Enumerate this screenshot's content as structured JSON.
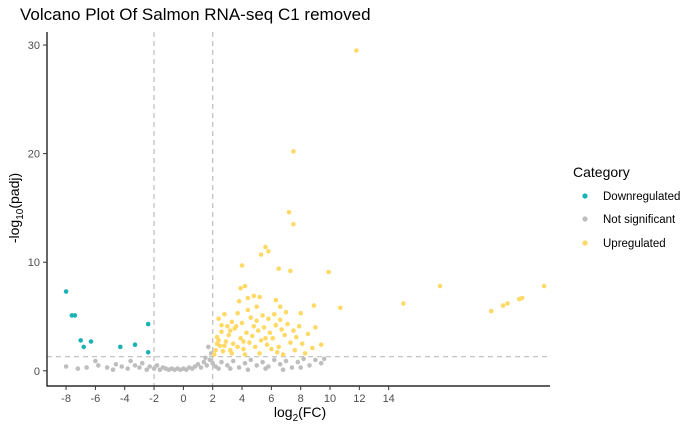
{
  "chart_data": {
    "type": "scatter",
    "title": "Volcano Plot Of Salmon RNA-seq C1 removed",
    "xlabel": {
      "main": "log",
      "sub": "2",
      "tail": "(FC)"
    },
    "ylabel": {
      "main": "-log",
      "sub": "10",
      "tail": "(padj)"
    },
    "xlim": [
      -9.3,
      25
    ],
    "ylim": [
      -1.4,
      31.2
    ],
    "xticks": [
      -8,
      -6,
      -4,
      -2,
      0,
      2,
      4,
      6,
      8,
      10,
      12,
      14
    ],
    "yticks": [
      0,
      10,
      20,
      30
    ],
    "thresholds": {
      "x": [
        -2,
        2
      ],
      "y": 1.3
    },
    "grid": false,
    "legend": {
      "title": "Category",
      "position": "right",
      "entries": [
        {
          "label": "Downregulated",
          "color": "#1AB2B2"
        },
        {
          "label": "Not significant",
          "color": "#BEBEBE"
        },
        {
          "label": "Upregulated",
          "color": "#FFD966"
        }
      ]
    },
    "series": [
      {
        "name": "Downregulated",
        "color": "#1AB2B2",
        "points": [
          [
            -8.0,
            7.3
          ],
          [
            -7.6,
            5.1
          ],
          [
            -7.4,
            5.1
          ],
          [
            -7.0,
            2.8
          ],
          [
            -6.8,
            2.2
          ],
          [
            -6.3,
            2.7
          ],
          [
            -4.3,
            2.2
          ],
          [
            -3.3,
            2.4
          ],
          [
            -2.4,
            4.3
          ],
          [
            -2.4,
            1.7
          ]
        ]
      },
      {
        "name": "Not significant",
        "color": "#BEBEBE",
        "points": [
          [
            -8.0,
            0.4
          ],
          [
            -7.2,
            0.2
          ],
          [
            -6.6,
            0.3
          ],
          [
            -6.0,
            0.9
          ],
          [
            -5.8,
            0.5
          ],
          [
            -5.2,
            0.3
          ],
          [
            -4.8,
            0.1
          ],
          [
            -4.6,
            0.6
          ],
          [
            -4.2,
            0.4
          ],
          [
            -3.8,
            0.2
          ],
          [
            -3.6,
            0.9
          ],
          [
            -3.3,
            0.5
          ],
          [
            -3.0,
            0.3
          ],
          [
            -2.8,
            0.7
          ],
          [
            -2.5,
            0.1
          ],
          [
            -2.3,
            0.4
          ],
          [
            -2.0,
            0.2
          ],
          [
            -1.8,
            0.5
          ],
          [
            -1.6,
            0.1
          ],
          [
            -1.4,
            0.3
          ],
          [
            -1.2,
            0.2
          ],
          [
            -1.0,
            0.1
          ],
          [
            -0.8,
            0.2
          ],
          [
            -0.6,
            0.1
          ],
          [
            -0.4,
            0.2
          ],
          [
            -0.2,
            0.1
          ],
          [
            0.0,
            0.2
          ],
          [
            0.2,
            0.1
          ],
          [
            0.4,
            0.3
          ],
          [
            0.6,
            0.2
          ],
          [
            0.8,
            0.4
          ],
          [
            1.0,
            0.6
          ],
          [
            1.2,
            0.3
          ],
          [
            1.4,
            0.8
          ],
          [
            1.6,
            0.5
          ],
          [
            1.8,
            1.0
          ],
          [
            1.9,
            1.6
          ],
          [
            1.7,
            2.2
          ],
          [
            2.0,
            0.7
          ],
          [
            1.5,
            1.2
          ],
          [
            2.2,
            0.4
          ],
          [
            2.6,
            0.8
          ],
          [
            3.0,
            0.5
          ],
          [
            3.4,
            0.9
          ],
          [
            3.8,
            0.3
          ],
          [
            4.2,
            0.7
          ],
          [
            4.6,
            1.0
          ],
          [
            5.0,
            0.5
          ],
          [
            5.4,
            0.8
          ],
          [
            5.8,
            0.4
          ],
          [
            6.2,
            1.0
          ],
          [
            6.6,
            0.6
          ],
          [
            7.0,
            0.9
          ],
          [
            7.4,
            0.3
          ],
          [
            7.8,
            0.8
          ],
          [
            8.2,
            1.1
          ],
          [
            8.6,
            0.5
          ],
          [
            9.0,
            1.0
          ],
          [
            9.4,
            0.7
          ],
          [
            9.6,
            1.1
          ],
          [
            2.4,
            0.2
          ],
          [
            3.2,
            0.2
          ],
          [
            4.4,
            0.1
          ],
          [
            5.6,
            0.2
          ],
          [
            6.8,
            0.1
          ],
          [
            8.0,
            0.3
          ]
        ]
      },
      {
        "name": "Upregulated",
        "color": "#FFD966",
        "points": [
          [
            11.8,
            29.5
          ],
          [
            7.5,
            20.2
          ],
          [
            7.2,
            14.6
          ],
          [
            7.5,
            13.5
          ],
          [
            5.6,
            11.4
          ],
          [
            5.3,
            10.7
          ],
          [
            5.8,
            11.0
          ],
          [
            4.0,
            9.7
          ],
          [
            6.5,
            9.4
          ],
          [
            7.3,
            9.2
          ],
          [
            9.9,
            9.1
          ],
          [
            4.2,
            7.8
          ],
          [
            3.9,
            7.6
          ],
          [
            4.4,
            6.7
          ],
          [
            3.8,
            6.4
          ],
          [
            4.8,
            6.9
          ],
          [
            5.2,
            6.8
          ],
          [
            6.3,
            6.5
          ],
          [
            8.9,
            6.0
          ],
          [
            10.7,
            5.8
          ],
          [
            6.6,
            5.9
          ],
          [
            7.0,
            5.4
          ],
          [
            15.0,
            6.2
          ],
          [
            17.5,
            7.8
          ],
          [
            21.0,
            5.5
          ],
          [
            21.8,
            6.0
          ],
          [
            22.1,
            6.2
          ],
          [
            22.9,
            6.6
          ],
          [
            23.1,
            6.7
          ],
          [
            24.6,
            7.8
          ],
          [
            2.4,
            4.8
          ],
          [
            2.8,
            5.2
          ],
          [
            3.3,
            4.5
          ],
          [
            3.6,
            4.1
          ],
          [
            2.6,
            3.6
          ],
          [
            3.1,
            3.3
          ],
          [
            2.3,
            3.1
          ],
          [
            2.9,
            2.7
          ],
          [
            3.4,
            2.5
          ],
          [
            2.5,
            2.3
          ],
          [
            2.2,
            1.9
          ],
          [
            2.7,
            1.8
          ],
          [
            3.2,
            1.9
          ],
          [
            3.7,
            2.2
          ],
          [
            4.1,
            2.0
          ],
          [
            4.5,
            2.6
          ],
          [
            4.9,
            2.2
          ],
          [
            5.3,
            2.8
          ],
          [
            5.7,
            2.4
          ],
          [
            6.1,
            3.0
          ],
          [
            6.5,
            2.2
          ],
          [
            6.9,
            3.3
          ],
          [
            7.3,
            2.6
          ],
          [
            7.7,
            3.1
          ],
          [
            8.1,
            2.5
          ],
          [
            8.5,
            3.4
          ],
          [
            4.3,
            3.5
          ],
          [
            4.7,
            3.2
          ],
          [
            5.1,
            3.7
          ],
          [
            5.5,
            4.0
          ],
          [
            5.9,
            3.5
          ],
          [
            6.3,
            4.2
          ],
          [
            6.7,
            3.8
          ],
          [
            7.1,
            4.3
          ],
          [
            7.5,
            3.7
          ],
          [
            7.9,
            4.1
          ],
          [
            3.5,
            3.9
          ],
          [
            4.0,
            4.4
          ],
          [
            4.6,
            4.9
          ],
          [
            5.0,
            4.6
          ],
          [
            5.4,
            5.1
          ],
          [
            5.8,
            4.8
          ],
          [
            6.2,
            5.2
          ],
          [
            3.0,
            4.1
          ],
          [
            2.4,
            2.8
          ],
          [
            2.8,
            2.3
          ],
          [
            3.3,
            1.6
          ],
          [
            4.2,
            1.5
          ],
          [
            5.2,
            1.6
          ],
          [
            6.4,
            1.7
          ],
          [
            7.6,
            1.9
          ],
          [
            8.8,
            2.1
          ],
          [
            9.4,
            2.4
          ],
          [
            3.9,
            3.0
          ],
          [
            4.8,
            4.1
          ],
          [
            6.0,
            2.0
          ],
          [
            6.8,
            1.5
          ],
          [
            8.3,
            1.6
          ],
          [
            4.4,
            5.6
          ],
          [
            5.0,
            5.9
          ],
          [
            3.7,
            5.3
          ],
          [
            3.2,
            3.7
          ],
          [
            2.6,
            4.2
          ],
          [
            2.3,
            2.5
          ],
          [
            2.1,
            1.5
          ],
          [
            8.0,
            5.3
          ],
          [
            9.0,
            4.0
          ],
          [
            6.6,
            4.7
          ],
          [
            5.6,
            3.0
          ],
          [
            4.1,
            2.7
          ]
        ]
      }
    ]
  }
}
